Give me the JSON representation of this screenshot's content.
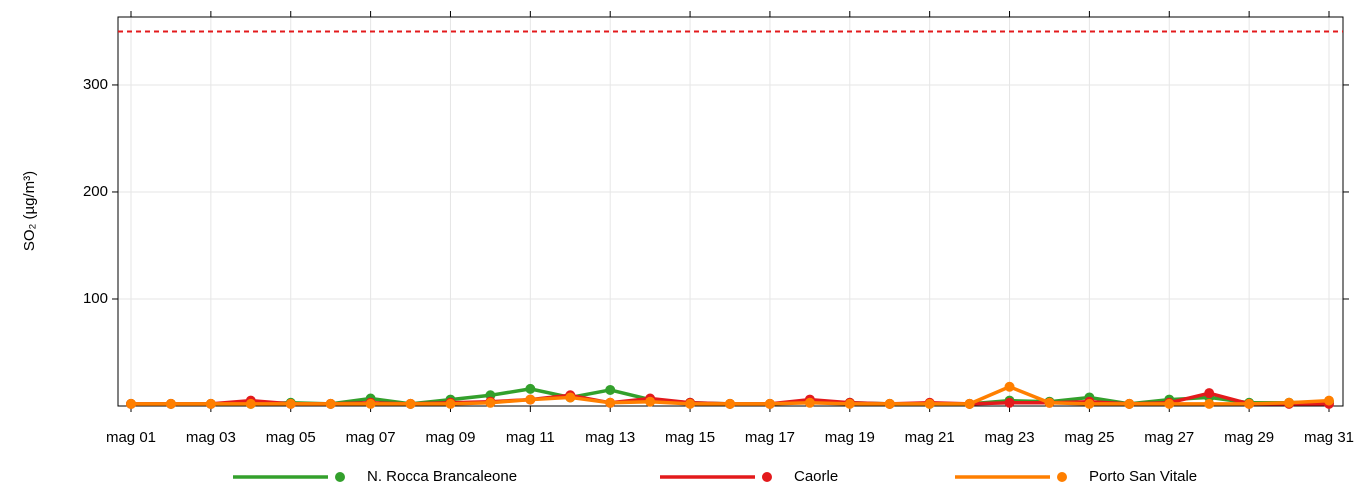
{
  "chart_data": {
    "type": "line",
    "y_label": "SO₂ (µg/m³)",
    "categories": [
      "mag 01",
      null,
      "mag 03",
      null,
      "mag 05",
      null,
      "mag 07",
      null,
      "mag 09",
      null,
      "mag 11",
      null,
      "mag 13",
      null,
      "mag 15",
      null,
      "mag 17",
      null,
      "mag 19",
      null,
      "mag 21",
      null,
      "mag 23",
      null,
      "mag 25",
      null,
      "mag 27",
      null,
      "mag 29",
      null,
      "mag 31"
    ],
    "series": [
      {
        "name": "N. Rocca Brancaleone",
        "color": "#33a02c",
        "values": [
          2,
          2,
          2,
          2,
          3,
          2,
          7,
          2,
          6,
          10,
          16,
          8,
          15,
          6,
          3,
          2,
          2,
          4,
          3,
          2,
          2,
          2,
          5,
          4,
          8,
          2,
          6,
          8,
          3,
          3,
          4
        ]
      },
      {
        "name": "Caorle",
        "color": "#e31a1c",
        "values": [
          2,
          2,
          2,
          5,
          2,
          2,
          3,
          2,
          3,
          4,
          6,
          10,
          3,
          7,
          3,
          2,
          2,
          6,
          3,
          2,
          3,
          2,
          3,
          3,
          4,
          2,
          3,
          12,
          2,
          2,
          2
        ]
      },
      {
        "name": "Porto San Vitale",
        "color": "#ff7f00",
        "values": [
          2,
          2,
          2,
          2,
          2,
          2,
          2,
          2,
          2,
          3,
          6,
          8,
          3,
          4,
          2,
          2,
          2,
          3,
          2,
          2,
          2,
          2,
          18,
          3,
          2,
          2,
          2,
          2,
          2,
          3,
          5
        ]
      }
    ],
    "ylim": [
      0,
      363.5
    ],
    "yticks": [
      100,
      200,
      300
    ],
    "reference_line": {
      "value": 350,
      "color": "#e31a1c"
    },
    "grid": true,
    "legend": "bottom"
  }
}
